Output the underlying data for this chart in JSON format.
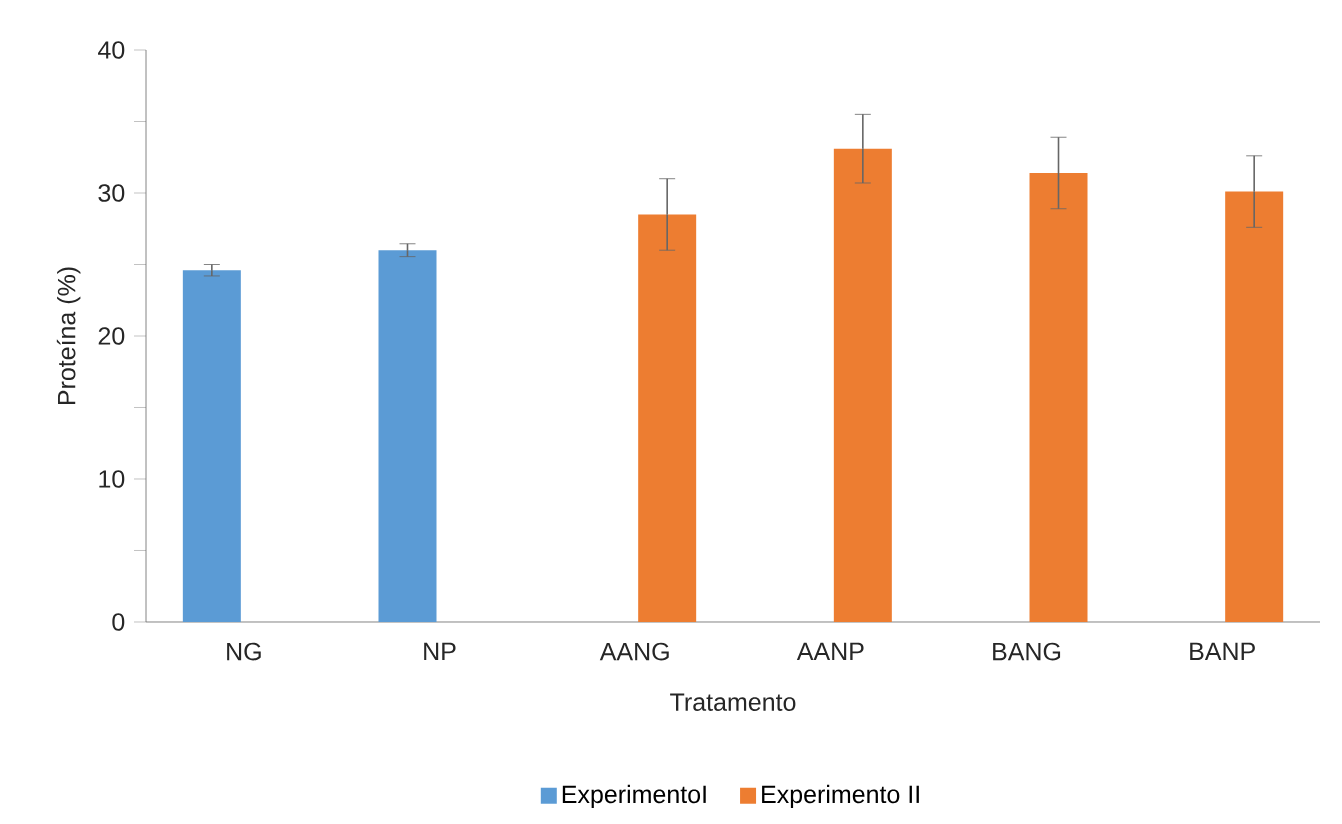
{
  "chart_data": {
    "type": "bar",
    "xlabel": "Tratamento",
    "ylabel": "Proteína (%)",
    "categories": [
      "NG",
      "NP",
      "AANG",
      "AANP",
      "BANG",
      "BANP"
    ],
    "series": [
      {
        "name": "ExperimentoI",
        "color": "#5b9bd5",
        "values": [
          24.6,
          26.0,
          null,
          null,
          null,
          null
        ],
        "errors": [
          0.4,
          0.45,
          null,
          null,
          null,
          null
        ]
      },
      {
        "name": "Experimento II",
        "color": "#ed7d31",
        "values": [
          null,
          null,
          28.5,
          33.1,
          31.4,
          30.1
        ],
        "errors": [
          null,
          null,
          2.5,
          2.4,
          2.5,
          2.5
        ]
      }
    ],
    "ylim": [
      0,
      40
    ],
    "yticks": [
      0,
      {
        "value": 5,
        "label": null
      },
      10,
      {
        "value": 15,
        "label": null
      },
      20,
      {
        "value": 25,
        "label": null
      },
      30,
      {
        "value": 35,
        "label": null
      },
      40
    ],
    "grid": false,
    "legend": "bottom"
  }
}
